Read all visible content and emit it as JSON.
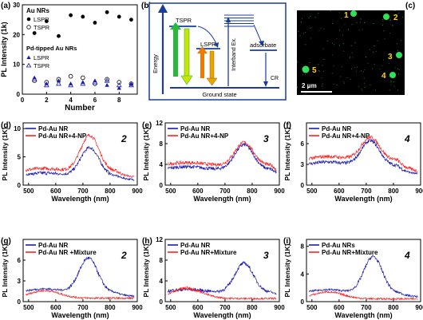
{
  "colors": {
    "blue": "#1a1ab0",
    "red": "#ff2020",
    "black": "#000000",
    "panel_b_dark": "#1a3d99",
    "tspr_green": "#27b83c",
    "tspr_lime": "#c8e600",
    "lspr_orange": "#f07a00",
    "lspr_gold": "#e0a800",
    "micro_bg": "#000000",
    "micro_spot": "#2ee05a",
    "micro_label": "#ffd400"
  },
  "panel_a": {
    "label": "(a)",
    "ylabel": "PL Intensity (1k)",
    "xlabel": "Number",
    "legend_au_title": "Au NRs",
    "legend_au": [
      "LSPR",
      "TSPR"
    ],
    "legend_pd_title": "Pd-tipped Au NRs",
    "legend_pd": [
      "LSPR",
      "TSPR"
    ],
    "yticks": [
      "0",
      "10",
      "20",
      "30"
    ],
    "xticks": [
      "0",
      "2",
      "4",
      "6",
      "8"
    ],
    "xlim": [
      0,
      9.5
    ],
    "ylim": [
      0,
      30
    ]
  },
  "panel_b": {
    "label": "(b)",
    "energy": "Energy",
    "tspr": "TSPR",
    "lspr": "LSPR",
    "interband": "Interband Ex.",
    "adsorbate": "adsorbate",
    "cr": "CR",
    "ground": "Ground state"
  },
  "panel_c": {
    "label": "(c)",
    "scalebar": "2 μm",
    "spot_labels": [
      "1",
      "2",
      "3",
      "4",
      "5"
    ]
  },
  "spectra_common": {
    "ylabel": "PL Intensity (1K)",
    "xlabel": "Wavelength (nm)",
    "xticks": [
      "500",
      "600",
      "700",
      "800",
      "900"
    ]
  },
  "chart_data": [
    {
      "type": "scatter",
      "panel": "a",
      "xlabel": "Number",
      "ylabel": "PL Intensity (1k)",
      "xlim": [
        0,
        9.5
      ],
      "ylim": [
        0,
        30
      ],
      "series": [
        {
          "name": "Au NRs LSPR",
          "x": [
            1,
            2,
            3,
            4,
            5,
            6,
            7,
            8,
            9
          ],
          "y": [
            20.5,
            24.5,
            19.5,
            26.5,
            26,
            24,
            27.5,
            26,
            25
          ]
        },
        {
          "name": "Au NRs TSPR",
          "x": [
            1,
            2,
            3,
            4,
            5,
            6,
            7,
            8,
            9
          ],
          "y": [
            4.5,
            4,
            5,
            6,
            5.5,
            3.5,
            5,
            4,
            3.5
          ]
        },
        {
          "name": "Pd-tipped Au NRs LSPR",
          "x": [
            1,
            2,
            3,
            4,
            5,
            6,
            7,
            8,
            9
          ],
          "y": [
            5.5,
            3.5,
            4.5,
            3.5,
            4,
            4.5,
            3,
            2,
            3.5
          ]
        },
        {
          "name": "Pd-tipped Au NRs TSPR",
          "x": [
            1,
            2,
            3,
            4,
            5,
            6,
            7,
            8,
            9
          ],
          "y": [
            5,
            3,
            3.5,
            3,
            3.5,
            4,
            4.5,
            3,
            3
          ]
        }
      ]
    },
    {
      "type": "line",
      "panel": "d",
      "label": "(d)",
      "number": "2",
      "xlim": [
        480,
        900
      ],
      "ylim": [
        0,
        11
      ],
      "yticks": [
        "0",
        "5",
        "10"
      ],
      "series": [
        {
          "name": "Pd-Au NR",
          "peak_x": 725,
          "peak_y": 6.6,
          "base_y": 1.6
        },
        {
          "name": "Pd-Au NR+4-NP",
          "peak_x": 725,
          "peak_y": 8.8,
          "base_y": 2.4
        }
      ]
    },
    {
      "type": "line",
      "panel": "e",
      "label": "(e)",
      "number": "3",
      "xlim": [
        480,
        900
      ],
      "ylim": [
        0,
        12
      ],
      "yticks": [
        "0",
        "4",
        "8",
        "12"
      ],
      "series": [
        {
          "name": "Pd-Au NR",
          "peak_x": 770,
          "peak_y": 7.8,
          "base_y": 3.0
        },
        {
          "name": "Pd-Au NR+4-NP",
          "peak_x": 770,
          "peak_y": 8.2,
          "base_y": 3.8
        }
      ]
    },
    {
      "type": "line",
      "panel": "f",
      "label": "(f)",
      "number": "4",
      "xlim": [
        480,
        900
      ],
      "ylim": [
        0,
        9
      ],
      "yticks": [
        "0",
        "3",
        "6"
      ],
      "series": [
        {
          "name": "Pd-Au NR",
          "peak_x": 715,
          "peak_y": 6.4,
          "base_y": 2.8
        },
        {
          "name": "Pd-Au NR+4-NP",
          "peak_x": 715,
          "peak_y": 6.9,
          "base_y": 3.6
        }
      ]
    },
    {
      "type": "line",
      "panel": "g",
      "label": "(g)",
      "number": "2",
      "xlim": [
        480,
        900
      ],
      "ylim": [
        0,
        9
      ],
      "yticks": [
        "0",
        "3",
        "6"
      ],
      "series": [
        {
          "name": "Pd-Au NR",
          "peak_x": 720,
          "peak_y": 6.3,
          "base_y": 1.3
        },
        {
          "name": "Pd-Au NR +Mixture",
          "peak_x": 560,
          "peak_y": 1.6,
          "base_y": 0.5
        }
      ]
    },
    {
      "type": "line",
      "panel": "h",
      "label": "(h)",
      "number": "3",
      "xlim": [
        480,
        900
      ],
      "ylim": [
        0,
        12
      ],
      "yticks": [
        "0",
        "4",
        "8",
        "12"
      ],
      "series": [
        {
          "name": "Pd-Au NR",
          "peak_x": 770,
          "peak_y": 7.4,
          "base_y": 1.8
        },
        {
          "name": "Pd-Au NR+Mixture",
          "peak_x": 560,
          "peak_y": 2.6,
          "base_y": 0.6
        }
      ]
    },
    {
      "type": "line",
      "panel": "i",
      "label": "(i)",
      "number": "4",
      "xlim": [
        480,
        900
      ],
      "ylim": [
        0,
        9
      ],
      "yticks": [
        "0",
        "4",
        "8"
      ],
      "series": [
        {
          "name": "Pd-Au NRs",
          "peak_x": 725,
          "peak_y": 6.5,
          "base_y": 1.2
        },
        {
          "name": "Pd-Au NR+Mixture",
          "peak_x": 560,
          "peak_y": 1.4,
          "base_y": 0.4
        }
      ]
    }
  ]
}
